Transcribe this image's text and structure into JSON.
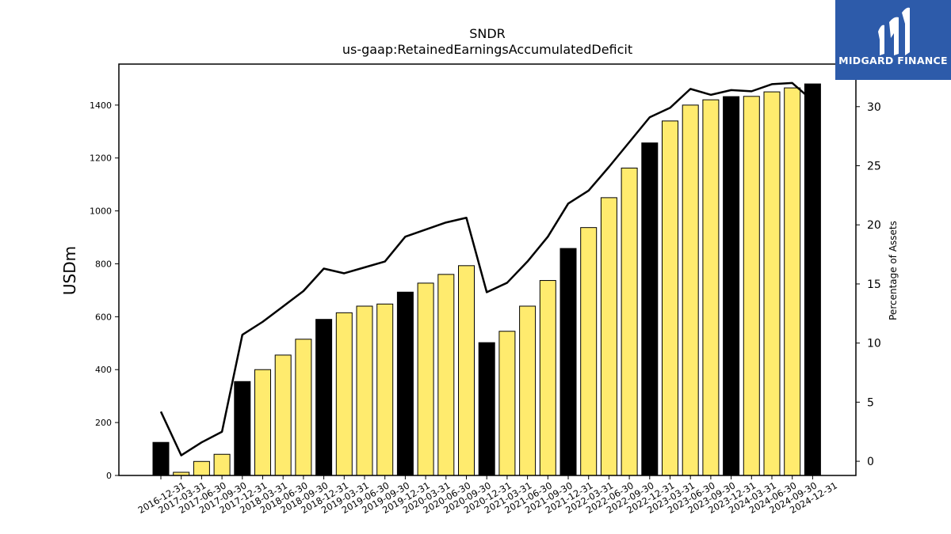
{
  "chart_data": {
    "type": "bar",
    "title": "SNDR",
    "subtitle": "us-gaap:RetainedEarningsAccumulatedDeficit",
    "ylabel": "USDm",
    "y2label": "Percentage of Assets",
    "ylim": [
      0,
      1555
    ],
    "y2lim": [
      -1.2,
      33.6
    ],
    "yticks": [
      0,
      200,
      400,
      600,
      800,
      1000,
      1200,
      1400
    ],
    "y2ticks": [
      0,
      5,
      10,
      15,
      20,
      25,
      30
    ],
    "grid": false,
    "categories": [
      "2016-12-31",
      "2017-03-31",
      "2017-06-30",
      "2017-09-30",
      "2017-12-31",
      "2018-03-31",
      "2018-06-30",
      "2018-09-30",
      "2018-12-31",
      "2019-03-31",
      "2019-06-30",
      "2019-09-30",
      "2019-12-31",
      "2020-03-31",
      "2020-06-30",
      "2020-09-30",
      "2020-12-31",
      "2021-03-31",
      "2021-06-30",
      "2021-09-30",
      "2021-12-31",
      "2022-03-31",
      "2022-06-30",
      "2022-09-30",
      "2022-12-31",
      "2023-03-31",
      "2023-06-30",
      "2023-09-30",
      "2023-12-31",
      "2024-03-31",
      "2024-06-30",
      "2024-09-30",
      "2024-12-31"
    ],
    "series": [
      {
        "type": "bar",
        "values": [
          125,
          12,
          53,
          80,
          355,
          400,
          455,
          515,
          590,
          615,
          640,
          648,
          693,
          727,
          760,
          793,
          502,
          545,
          640,
          737,
          858,
          937,
          1050,
          1162,
          1257,
          1340,
          1400,
          1420,
          1432,
          1433,
          1450,
          1465,
          1480
        ],
        "colors": [
          "#000000",
          "#ffeb6e",
          "#ffeb6e",
          "#ffeb6e",
          "#000000",
          "#ffeb6e",
          "#ffeb6e",
          "#ffeb6e",
          "#000000",
          "#ffeb6e",
          "#ffeb6e",
          "#ffeb6e",
          "#000000",
          "#ffeb6e",
          "#ffeb6e",
          "#ffeb6e",
          "#000000",
          "#ffeb6e",
          "#ffeb6e",
          "#ffeb6e",
          "#000000",
          "#ffeb6e",
          "#ffeb6e",
          "#ffeb6e",
          "#000000",
          "#ffeb6e",
          "#ffeb6e",
          "#ffeb6e",
          "#000000",
          "#ffeb6e",
          "#ffeb6e",
          "#ffeb6e",
          "#000000"
        ]
      },
      {
        "type": "line",
        "axis": "right",
        "color": "#000000",
        "values": [
          4.2,
          0.5,
          1.6,
          2.5,
          10.7,
          11.8,
          13.1,
          14.4,
          16.3,
          15.9,
          16.4,
          16.9,
          19.0,
          19.6,
          20.2,
          20.6,
          14.3,
          15.1,
          16.9,
          19.0,
          21.8,
          22.9,
          24.9,
          27.0,
          29.1,
          29.9,
          31.5,
          31.0,
          31.4,
          31.3,
          31.9,
          32.0,
          30.5
        ]
      }
    ]
  },
  "logo": {
    "text": "MIDGARD FINANCE",
    "bg_color": "#2d5baa"
  }
}
